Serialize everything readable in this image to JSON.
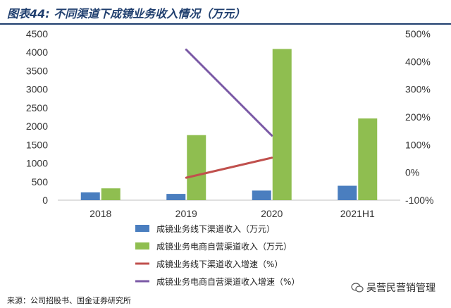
{
  "title": "图表44:  不同渠道下成镜业务收入情况（万元）",
  "source": "来源：公司招股书、国金证券研究所",
  "watermark": "吴营民营销管理",
  "colors": {
    "title": "#1f3e6e",
    "offline_bar": "#4a7ebf",
    "ecommerce_bar": "#8fbe50",
    "offline_growth": "#c0504d",
    "ecommerce_growth": "#7b5aa6"
  },
  "chart_data": {
    "type": "bar",
    "categories": [
      "2018",
      "2019",
      "2020",
      "2021H1"
    ],
    "left_axis": {
      "min": 0,
      "max": 4500,
      "step": 500,
      "ticks": [
        "0",
        "500",
        "1000",
        "1500",
        "2000",
        "2500",
        "3000",
        "3500",
        "4000",
        "4500"
      ]
    },
    "right_axis": {
      "min": -100,
      "max": 500,
      "step": 100,
      "ticks": [
        "-100%",
        "0%",
        "100%",
        "200%",
        "300%",
        "400%",
        "500%"
      ]
    },
    "series": [
      {
        "name": "成镜业务线下渠道收入（万元）",
        "type": "bar",
        "axis": "left",
        "values": [
          210,
          170,
          260,
          390
        ]
      },
      {
        "name": "成镜业务电商自营渠道收入（万元）",
        "type": "bar",
        "axis": "left",
        "values": [
          320,
          1760,
          4090,
          2210
        ]
      },
      {
        "name": "成镜业务线下渠道收入增速（%）",
        "type": "line",
        "axis": "right",
        "values": [
          null,
          -19,
          53,
          null
        ]
      },
      {
        "name": "成镜业务电商自营渠道收入增速（%）",
        "type": "line",
        "axis": "right",
        "values": [
          null,
          443,
          133,
          null
        ]
      }
    ],
    "legend_position": "bottom-center",
    "grid": false
  }
}
